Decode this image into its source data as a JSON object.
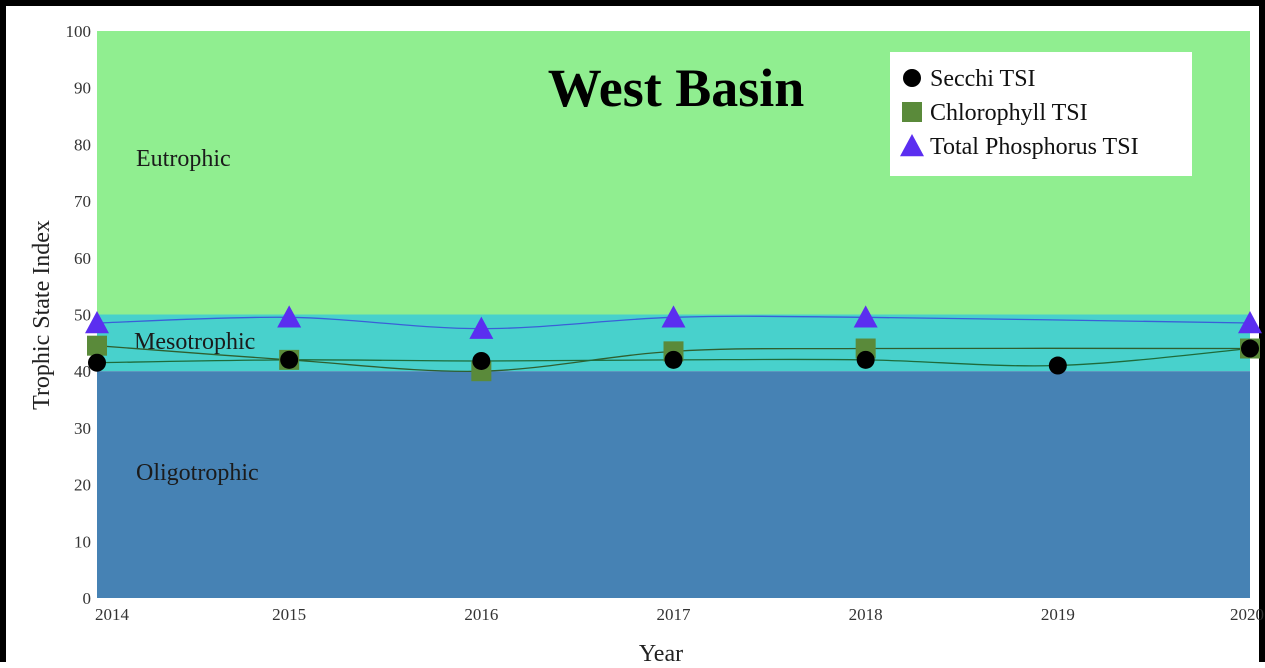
{
  "chart_data": {
    "type": "line",
    "title": "West Basin",
    "xlabel": "Year",
    "ylabel": "Trophic State Index",
    "x": [
      2014,
      2015,
      2016,
      2017,
      2018,
      2019,
      2020
    ],
    "x_tick_labels": [
      "2014",
      "2015",
      "2016",
      "2017",
      "2018",
      "2019",
      "2020"
    ],
    "ylim": [
      0,
      100
    ],
    "y_ticks": [
      0,
      10,
      20,
      30,
      40,
      50,
      60,
      70,
      80,
      90,
      100
    ],
    "grid": false,
    "legend_position": "top-right",
    "zones": [
      {
        "label": "Eutrophic",
        "from": 50,
        "to": 100,
        "color": "#90ee90"
      },
      {
        "label": "Mesotrophic",
        "from": 40,
        "to": 50,
        "color": "#48d1cc"
      },
      {
        "label": "Oligotrophic",
        "from": 0,
        "to": 40,
        "color": "#4682b4"
      }
    ],
    "series": [
      {
        "name": "Secchi TSI",
        "marker": "circle",
        "color": "#000000",
        "line_color": "#1e6b3a",
        "values": [
          41.5,
          42,
          41.8,
          42,
          42,
          41,
          44
        ]
      },
      {
        "name": "Chlorophyll TSI",
        "marker": "square",
        "color": "#5a8a3a",
        "line_color": "#2f5f2f",
        "values": [
          44.5,
          42,
          40,
          43.5,
          44,
          null,
          44
        ]
      },
      {
        "name": "Total Phosphorus TSI",
        "marker": "triangle",
        "color": "#5b2ef0",
        "line_color": "#3a5fd8",
        "values": [
          48.5,
          49.5,
          47.5,
          49.5,
          49.5,
          null,
          48.5
        ]
      }
    ]
  }
}
